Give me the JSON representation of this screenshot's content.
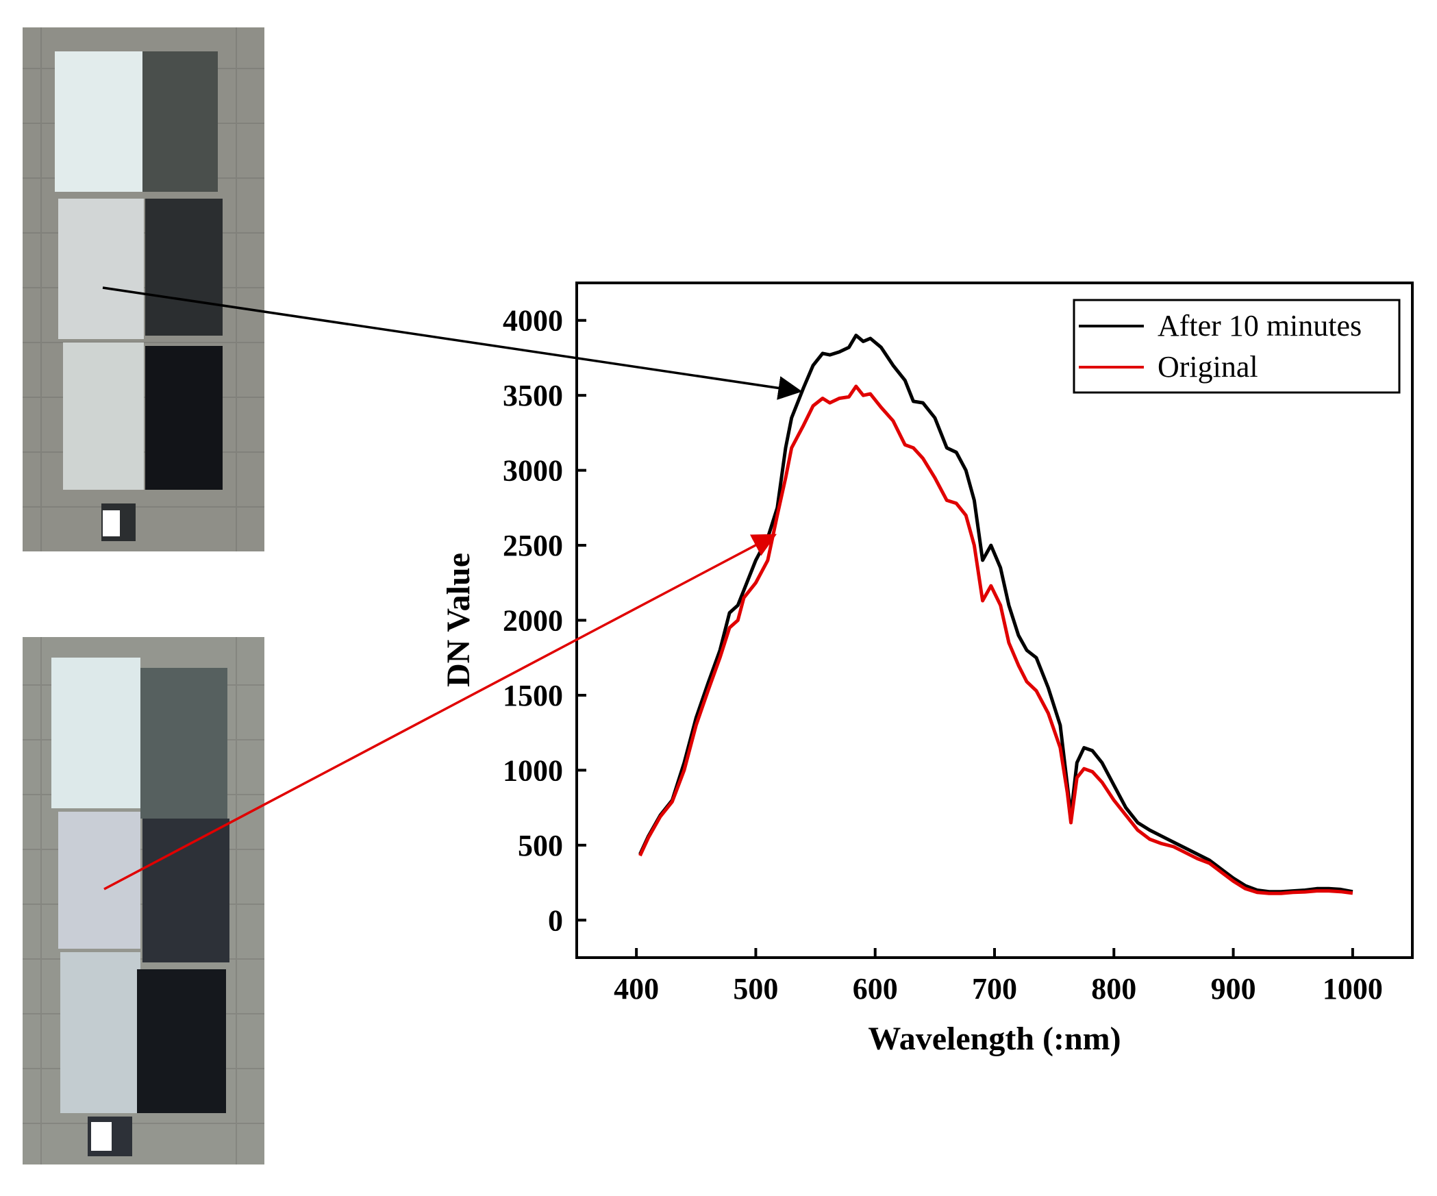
{
  "chart_data": {
    "type": "line",
    "xlabel": "Wavelength (:nm)",
    "ylabel": "DN Value",
    "xlim": [
      350,
      1050
    ],
    "ylim": [
      -250,
      4250
    ],
    "xticks": [
      400,
      500,
      600,
      700,
      800,
      900,
      1000
    ],
    "yticks": [
      0,
      500,
      1000,
      1500,
      2000,
      2500,
      3000,
      3500,
      4000
    ],
    "grid": false,
    "legend_position": "top-right",
    "series": [
      {
        "name": "After 10 minutes",
        "color": "#000000",
        "points": [
          [
            403,
            440
          ],
          [
            410,
            560
          ],
          [
            420,
            700
          ],
          [
            430,
            800
          ],
          [
            440,
            1050
          ],
          [
            450,
            1350
          ],
          [
            460,
            1580
          ],
          [
            470,
            1800
          ],
          [
            478,
            2050
          ],
          [
            485,
            2100
          ],
          [
            490,
            2200
          ],
          [
            500,
            2400
          ],
          [
            510,
            2550
          ],
          [
            518,
            2750
          ],
          [
            525,
            3150
          ],
          [
            530,
            3350
          ],
          [
            540,
            3550
          ],
          [
            548,
            3700
          ],
          [
            556,
            3780
          ],
          [
            562,
            3770
          ],
          [
            570,
            3790
          ],
          [
            578,
            3820
          ],
          [
            584,
            3900
          ],
          [
            590,
            3860
          ],
          [
            596,
            3880
          ],
          [
            605,
            3820
          ],
          [
            615,
            3700
          ],
          [
            625,
            3600
          ],
          [
            632,
            3460
          ],
          [
            640,
            3450
          ],
          [
            650,
            3350
          ],
          [
            660,
            3150
          ],
          [
            668,
            3120
          ],
          [
            676,
            3000
          ],
          [
            683,
            2800
          ],
          [
            690,
            2400
          ],
          [
            697,
            2500
          ],
          [
            705,
            2350
          ],
          [
            712,
            2100
          ],
          [
            720,
            1900
          ],
          [
            727,
            1800
          ],
          [
            735,
            1750
          ],
          [
            745,
            1550
          ],
          [
            755,
            1300
          ],
          [
            761,
            900
          ],
          [
            764,
            700
          ],
          [
            769,
            1050
          ],
          [
            775,
            1150
          ],
          [
            782,
            1130
          ],
          [
            790,
            1050
          ],
          [
            800,
            900
          ],
          [
            810,
            750
          ],
          [
            820,
            650
          ],
          [
            830,
            600
          ],
          [
            840,
            560
          ],
          [
            850,
            520
          ],
          [
            860,
            480
          ],
          [
            870,
            440
          ],
          [
            880,
            400
          ],
          [
            890,
            340
          ],
          [
            900,
            280
          ],
          [
            910,
            230
          ],
          [
            920,
            200
          ],
          [
            930,
            190
          ],
          [
            940,
            190
          ],
          [
            950,
            195
          ],
          [
            960,
            200
          ],
          [
            970,
            210
          ],
          [
            980,
            210
          ],
          [
            990,
            205
          ],
          [
            1000,
            190
          ]
        ]
      },
      {
        "name": "Original",
        "color": "#e00000",
        "points": [
          [
            403,
            430
          ],
          [
            410,
            550
          ],
          [
            420,
            690
          ],
          [
            430,
            790
          ],
          [
            440,
            1000
          ],
          [
            450,
            1300
          ],
          [
            460,
            1530
          ],
          [
            470,
            1750
          ],
          [
            478,
            1950
          ],
          [
            485,
            2000
          ],
          [
            490,
            2150
          ],
          [
            500,
            2250
          ],
          [
            510,
            2400
          ],
          [
            518,
            2700
          ],
          [
            525,
            2950
          ],
          [
            530,
            3150
          ],
          [
            540,
            3300
          ],
          [
            548,
            3430
          ],
          [
            556,
            3480
          ],
          [
            562,
            3450
          ],
          [
            570,
            3480
          ],
          [
            578,
            3490
          ],
          [
            584,
            3560
          ],
          [
            590,
            3500
          ],
          [
            596,
            3510
          ],
          [
            605,
            3420
          ],
          [
            615,
            3330
          ],
          [
            625,
            3170
          ],
          [
            632,
            3150
          ],
          [
            640,
            3080
          ],
          [
            650,
            2950
          ],
          [
            660,
            2800
          ],
          [
            668,
            2780
          ],
          [
            676,
            2700
          ],
          [
            683,
            2500
          ],
          [
            690,
            2130
          ],
          [
            697,
            2230
          ],
          [
            705,
            2100
          ],
          [
            712,
            1850
          ],
          [
            720,
            1700
          ],
          [
            727,
            1590
          ],
          [
            735,
            1530
          ],
          [
            745,
            1380
          ],
          [
            755,
            1150
          ],
          [
            761,
            850
          ],
          [
            764,
            650
          ],
          [
            769,
            950
          ],
          [
            775,
            1010
          ],
          [
            782,
            990
          ],
          [
            790,
            920
          ],
          [
            800,
            800
          ],
          [
            810,
            700
          ],
          [
            820,
            600
          ],
          [
            830,
            540
          ],
          [
            840,
            510
          ],
          [
            850,
            490
          ],
          [
            860,
            450
          ],
          [
            870,
            410
          ],
          [
            880,
            380
          ],
          [
            890,
            320
          ],
          [
            900,
            260
          ],
          [
            910,
            210
          ],
          [
            920,
            185
          ],
          [
            930,
            178
          ],
          [
            940,
            178
          ],
          [
            950,
            185
          ],
          [
            960,
            188
          ],
          [
            970,
            195
          ],
          [
            980,
            195
          ],
          [
            990,
            190
          ],
          [
            1000,
            180
          ]
        ]
      }
    ],
    "annotations": [
      {
        "name": "black-pointer-arrow",
        "color": "#000000",
        "target_x": 535,
        "target_y": 3530
      },
      {
        "name": "red-pointer-arrow",
        "color": "#e00000",
        "target_x": 514,
        "target_y": 2560
      }
    ]
  },
  "photos": [
    {
      "name": "photo-after-10-minutes",
      "panel_colors": {
        "ground": "#8f8f88",
        "white_top": "#e2ecec",
        "white_mid": "#d2d6d6",
        "white_bot": "#cfd4d2",
        "gray_top": "#4a4f4c",
        "gray_mid": "#2b2e30",
        "gray_bot": "#121418",
        "sign": "#ffffff"
      }
    },
    {
      "name": "photo-original",
      "panel_colors": {
        "ground": "#94968f",
        "white_top": "#dde9ea",
        "white_mid": "#c9ced6",
        "white_bot": "#c3ccd0",
        "gray_top": "#56605f",
        "gray_mid": "#2d3138",
        "gray_bot": "#15181d",
        "sign": "#ffffff"
      }
    }
  ]
}
